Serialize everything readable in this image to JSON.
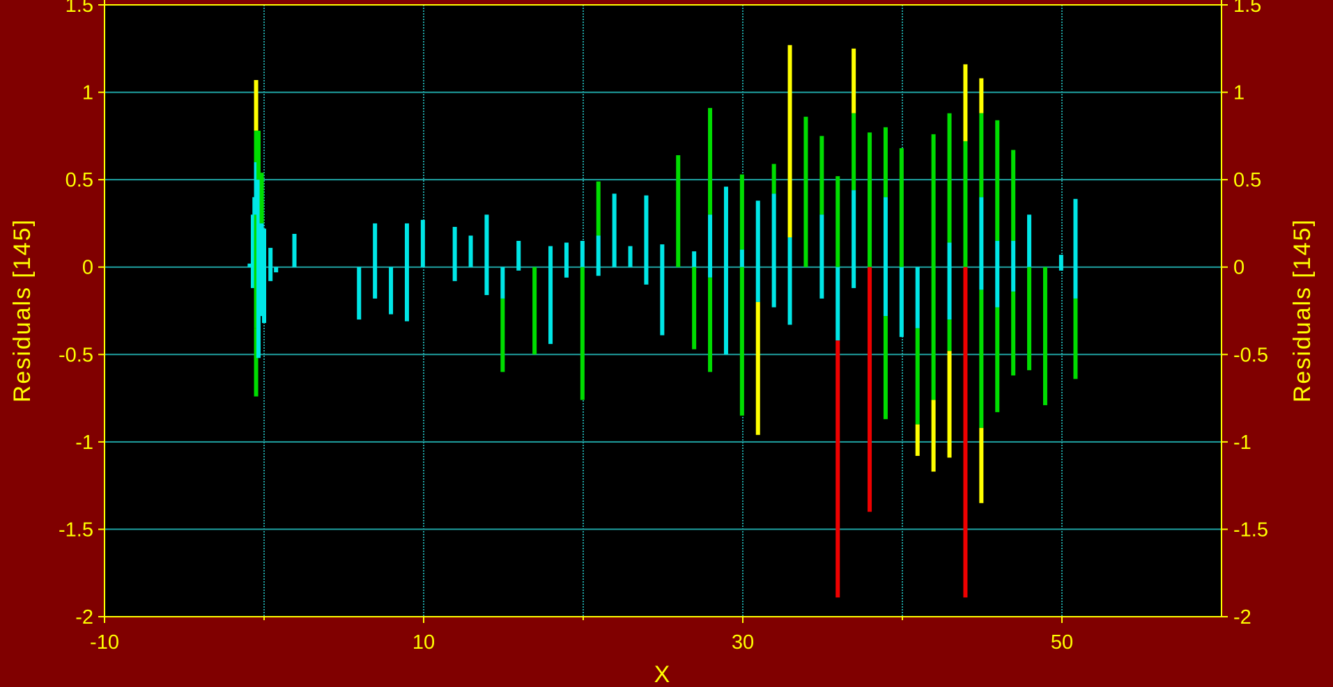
{
  "chart_data": {
    "type": "bar",
    "xlabel": "X",
    "ylabel_left": "Residuals [145]",
    "ylabel_right": "Residuals [145]",
    "xlim": [
      -10,
      60
    ],
    "ylim": [
      -2,
      1.5
    ],
    "x_ticks": [
      -10,
      10,
      30,
      50
    ],
    "x_tick_labels": [
      "-10",
      "10",
      "30",
      "50"
    ],
    "x_gridlines": [
      0,
      10,
      20,
      30,
      40,
      50
    ],
    "y_ticks": [
      -2,
      -1.5,
      -1,
      -0.5,
      0,
      0.5,
      1,
      1.5
    ],
    "y_tick_labels": [
      "-2",
      "-1.5",
      "-1",
      "-0.5",
      "0",
      "0.5",
      "1",
      "1.5"
    ],
    "grid": true,
    "colors": {
      "background": "#800000",
      "plot": "#000000",
      "axis": "#ffff00",
      "grid": "#1fa3a3",
      "cyan": "#00e6e6",
      "green": "#00dd00",
      "yellow": "#ffff00",
      "red": "#ee0000"
    },
    "bars": [
      {
        "x": -0.9,
        "segs": [
          [
            0,
            0.02,
            "cyan"
          ]
        ]
      },
      {
        "x": -0.7,
        "segs": [
          [
            -0.12,
            0.3,
            "cyan"
          ]
        ]
      },
      {
        "x": -0.6,
        "segs": [
          [
            -0.05,
            0.4,
            "cyan"
          ]
        ]
      },
      {
        "x": -0.5,
        "segs": [
          [
            0.78,
            1.07,
            "yellow"
          ],
          [
            0.6,
            0.78,
            "green"
          ],
          [
            0.3,
            0.6,
            "cyan"
          ],
          [
            -0.35,
            0.3,
            "green"
          ],
          [
            -0.74,
            -0.35,
            "green"
          ]
        ]
      },
      {
        "x": -0.35,
        "segs": [
          [
            0.5,
            0.78,
            "green"
          ],
          [
            -0.52,
            0.5,
            "cyan"
          ]
        ]
      },
      {
        "x": -0.15,
        "segs": [
          [
            0.25,
            0.54,
            "green"
          ],
          [
            -0.28,
            0.25,
            "cyan"
          ]
        ]
      },
      {
        "x": 0.0,
        "segs": [
          [
            -0.32,
            0.22,
            "cyan"
          ]
        ]
      },
      {
        "x": 0.4,
        "segs": [
          [
            -0.08,
            0.11,
            "cyan"
          ]
        ]
      },
      {
        "x": 0.75,
        "segs": [
          [
            -0.03,
            0,
            "cyan"
          ]
        ]
      },
      {
        "x": 1.9,
        "segs": [
          [
            0,
            0.19,
            "cyan"
          ]
        ]
      },
      {
        "x": 5.95,
        "segs": [
          [
            -0.3,
            0,
            "cyan"
          ]
        ]
      },
      {
        "x": 6.95,
        "segs": [
          [
            -0.18,
            0.25,
            "cyan"
          ]
        ]
      },
      {
        "x": 7.95,
        "segs": [
          [
            -0.27,
            0,
            "cyan"
          ]
        ]
      },
      {
        "x": 8.95,
        "segs": [
          [
            -0.31,
            0.25,
            "cyan"
          ]
        ]
      },
      {
        "x": 9.95,
        "segs": [
          [
            0,
            0.27,
            "cyan"
          ]
        ]
      },
      {
        "x": 11.95,
        "segs": [
          [
            -0.08,
            0.23,
            "cyan"
          ]
        ]
      },
      {
        "x": 12.95,
        "segs": [
          [
            0,
            0.18,
            "cyan"
          ]
        ]
      },
      {
        "x": 13.95,
        "segs": [
          [
            -0.16,
            0.3,
            "cyan"
          ]
        ]
      },
      {
        "x": 14.95,
        "segs": [
          [
            -0.18,
            0,
            "cyan"
          ],
          [
            -0.6,
            -0.18,
            "green"
          ]
        ]
      },
      {
        "x": 15.95,
        "segs": [
          [
            -0.02,
            0.15,
            "cyan"
          ]
        ]
      },
      {
        "x": 16.95,
        "segs": [
          [
            -0.5,
            0,
            "green"
          ]
        ]
      },
      {
        "x": 17.95,
        "segs": [
          [
            -0.44,
            0.12,
            "cyan"
          ]
        ]
      },
      {
        "x": 18.95,
        "segs": [
          [
            -0.06,
            0.14,
            "cyan"
          ]
        ]
      },
      {
        "x": 19.95,
        "segs": [
          [
            0,
            0.15,
            "cyan"
          ],
          [
            -0.76,
            0,
            "green"
          ]
        ]
      },
      {
        "x": 20.95,
        "segs": [
          [
            0.18,
            0.49,
            "green"
          ],
          [
            -0.05,
            0.18,
            "cyan"
          ]
        ]
      },
      {
        "x": 21.95,
        "segs": [
          [
            0,
            0.42,
            "cyan"
          ]
        ]
      },
      {
        "x": 22.95,
        "segs": [
          [
            0,
            0.12,
            "cyan"
          ]
        ]
      },
      {
        "x": 23.95,
        "segs": [
          [
            -0.1,
            0.41,
            "cyan"
          ]
        ]
      },
      {
        "x": 24.95,
        "segs": [
          [
            -0.39,
            0.13,
            "cyan"
          ]
        ]
      },
      {
        "x": 25.95,
        "segs": [
          [
            0,
            0.64,
            "green"
          ]
        ]
      },
      {
        "x": 26.95,
        "segs": [
          [
            0,
            0.09,
            "cyan"
          ],
          [
            -0.47,
            0,
            "green"
          ]
        ]
      },
      {
        "x": 27.95,
        "segs": [
          [
            0.3,
            0.91,
            "green"
          ],
          [
            -0.06,
            0.3,
            "cyan"
          ],
          [
            -0.6,
            -0.06,
            "green"
          ]
        ]
      },
      {
        "x": 28.95,
        "segs": [
          [
            -0.5,
            0.46,
            "cyan"
          ]
        ]
      },
      {
        "x": 29.95,
        "segs": [
          [
            0.1,
            0.53,
            "green"
          ],
          [
            0,
            0.1,
            "cyan"
          ],
          [
            -0.85,
            0,
            "green"
          ]
        ]
      },
      {
        "x": 30.95,
        "segs": [
          [
            -0.2,
            0.38,
            "cyan"
          ],
          [
            -0.96,
            -0.2,
            "yellow"
          ]
        ]
      },
      {
        "x": 31.95,
        "segs": [
          [
            0.42,
            0.59,
            "green"
          ],
          [
            -0.23,
            0.42,
            "cyan"
          ]
        ]
      },
      {
        "x": 32.95,
        "segs": [
          [
            0.17,
            1.27,
            "yellow"
          ],
          [
            -0.33,
            0.17,
            "cyan"
          ]
        ]
      },
      {
        "x": 33.95,
        "segs": [
          [
            0,
            0.86,
            "green"
          ]
        ]
      },
      {
        "x": 34.95,
        "segs": [
          [
            0.3,
            0.75,
            "green"
          ],
          [
            -0.18,
            0.3,
            "cyan"
          ]
        ]
      },
      {
        "x": 35.95,
        "segs": [
          [
            0,
            0.52,
            "green"
          ],
          [
            -0.42,
            0,
            "cyan"
          ],
          [
            -1.89,
            -0.42,
            "red"
          ]
        ]
      },
      {
        "x": 36.95,
        "segs": [
          [
            0.88,
            1.25,
            "yellow"
          ],
          [
            0.44,
            0.88,
            "green"
          ],
          [
            -0.12,
            0.44,
            "cyan"
          ]
        ]
      },
      {
        "x": 37.95,
        "segs": [
          [
            0,
            0.77,
            "green"
          ],
          [
            -1.4,
            0,
            "red"
          ]
        ]
      },
      {
        "x": 38.95,
        "segs": [
          [
            0.4,
            0.8,
            "green"
          ],
          [
            -0.28,
            0.4,
            "cyan"
          ],
          [
            -0.87,
            -0.28,
            "green"
          ]
        ]
      },
      {
        "x": 39.95,
        "segs": [
          [
            0,
            0.68,
            "green"
          ],
          [
            -0.4,
            0,
            "cyan"
          ]
        ]
      },
      {
        "x": 40.95,
        "segs": [
          [
            -0.35,
            0,
            "cyan"
          ],
          [
            -0.9,
            -0.35,
            "green"
          ],
          [
            -1.08,
            -0.9,
            "yellow"
          ]
        ]
      },
      {
        "x": 41.95,
        "segs": [
          [
            0,
            0.76,
            "green"
          ],
          [
            -0.76,
            0,
            "green"
          ],
          [
            -1.17,
            -0.76,
            "yellow"
          ]
        ]
      },
      {
        "x": 42.95,
        "segs": [
          [
            0.14,
            0.88,
            "green"
          ],
          [
            -0.3,
            0.14,
            "cyan"
          ],
          [
            -0.48,
            -0.3,
            "green"
          ],
          [
            -1.09,
            -0.48,
            "yellow"
          ]
        ]
      },
      {
        "x": 43.95,
        "segs": [
          [
            0.72,
            1.16,
            "yellow"
          ],
          [
            0,
            0.72,
            "green"
          ],
          [
            -1.89,
            0,
            "red"
          ]
        ]
      },
      {
        "x": 44.95,
        "segs": [
          [
            0.88,
            1.08,
            "yellow"
          ],
          [
            0.4,
            0.88,
            "green"
          ],
          [
            -0.13,
            0.4,
            "cyan"
          ],
          [
            -0.92,
            -0.13,
            "green"
          ],
          [
            -1.35,
            -0.92,
            "yellow"
          ]
        ]
      },
      {
        "x": 45.95,
        "segs": [
          [
            0.15,
            0.84,
            "green"
          ],
          [
            -0.23,
            0.15,
            "cyan"
          ],
          [
            -0.83,
            -0.23,
            "green"
          ]
        ]
      },
      {
        "x": 46.95,
        "segs": [
          [
            0.15,
            0.67,
            "green"
          ],
          [
            -0.14,
            0.15,
            "cyan"
          ],
          [
            -0.62,
            -0.14,
            "green"
          ]
        ]
      },
      {
        "x": 47.95,
        "segs": [
          [
            0,
            0.3,
            "cyan"
          ],
          [
            -0.59,
            0,
            "green"
          ]
        ]
      },
      {
        "x": 48.95,
        "segs": [
          [
            -0.79,
            0,
            "green"
          ]
        ]
      },
      {
        "x": 49.95,
        "segs": [
          [
            -0.02,
            0.07,
            "cyan"
          ]
        ]
      },
      {
        "x": 50.85,
        "segs": [
          [
            -0.18,
            0.39,
            "cyan"
          ],
          [
            -0.64,
            -0.18,
            "green"
          ]
        ]
      }
    ]
  }
}
